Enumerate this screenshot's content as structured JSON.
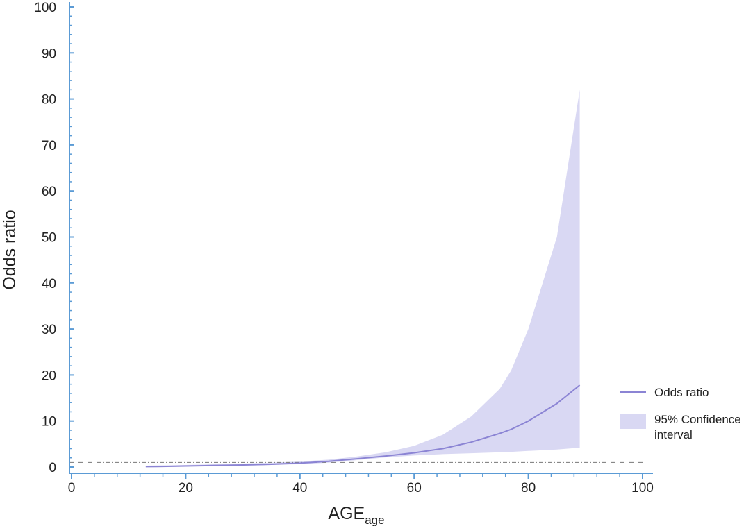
{
  "chart_data": {
    "type": "line",
    "x_label": "AGE",
    "x_label_subscript": "age",
    "y_label": "Odds ratio",
    "xlim": [
      0,
      100
    ],
    "ylim": [
      0,
      100
    ],
    "xticks": [
      0,
      20,
      40,
      60,
      80,
      100
    ],
    "yticks": [
      0,
      10,
      20,
      30,
      40,
      50,
      60,
      70,
      80,
      90,
      100
    ],
    "minor_divisions": 5,
    "reference_line": 1,
    "x": [
      13,
      15,
      20,
      25,
      30,
      35,
      40,
      45,
      50,
      55,
      60,
      65,
      70,
      75,
      77,
      80,
      85,
      89
    ],
    "series": [
      {
        "name": "Odds ratio",
        "color": "#8b84d4",
        "values": [
          0.1,
          0.12,
          0.22,
          0.33,
          0.45,
          0.6,
          0.85,
          1.25,
          1.8,
          2.4,
          3.1,
          4.0,
          5.4,
          7.3,
          8.2,
          10,
          13.8,
          17.8
        ]
      },
      {
        "name": "95% Confidence interval",
        "color": "#d9d8f3",
        "lower": [
          0.05,
          0.06,
          0.12,
          0.2,
          0.3,
          0.45,
          0.62,
          0.95,
          1.5,
          2.1,
          2.5,
          2.8,
          3.0,
          3.2,
          3.3,
          3.5,
          3.8,
          4.2
        ],
        "upper": [
          0.3,
          0.35,
          0.45,
          0.6,
          0.75,
          0.95,
          1.2,
          1.6,
          2.3,
          3.2,
          4.6,
          7,
          11,
          17,
          21,
          30,
          50,
          82
        ]
      }
    ],
    "axis_color": "#5b9bd5",
    "legend_position": "right"
  }
}
